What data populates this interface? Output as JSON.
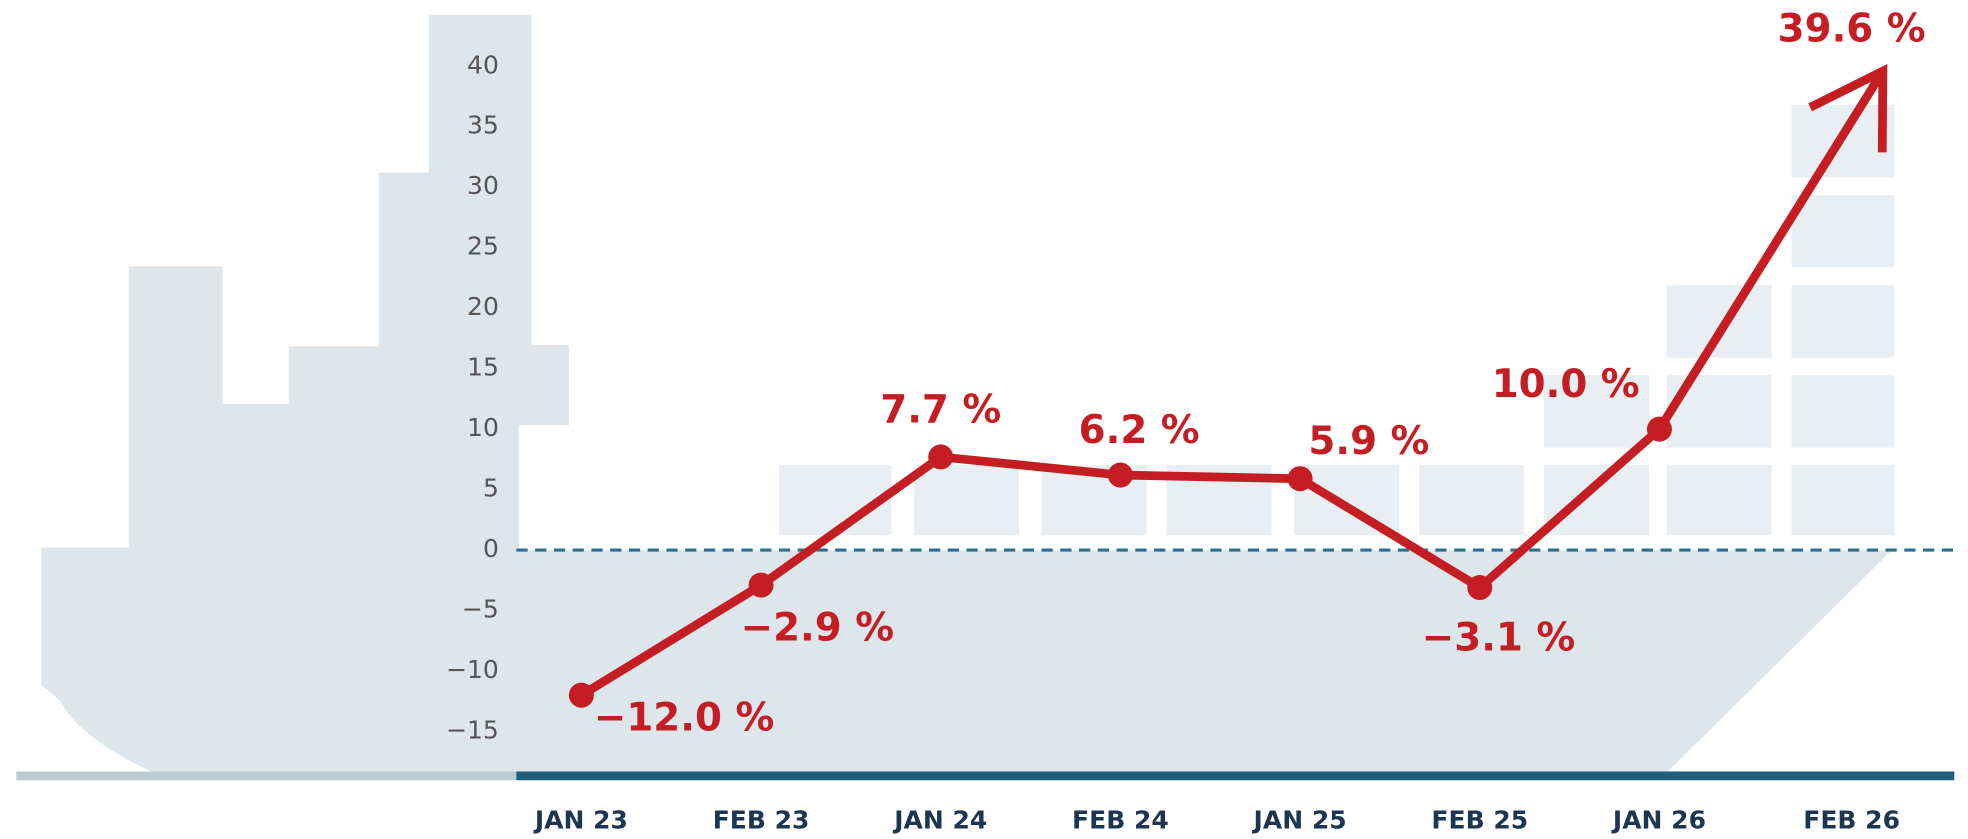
{
  "chart_data": {
    "type": "line",
    "categories": [
      "JAN 23",
      "FEB 23",
      "JAN 24",
      "FEB 24",
      "JAN 25",
      "FEB 25",
      "JAN 26",
      "FEB 26"
    ],
    "values": [
      -12.0,
      -2.9,
      7.7,
      6.2,
      5.9,
      -3.1,
      10.0,
      39.6
    ],
    "value_labels": [
      "−12.0 %",
      "−2.9 %",
      "7.7 %",
      "6.2 %",
      "5.9 %",
      "−3.1 %",
      "10.0 %",
      "39.6 %"
    ],
    "color": "#c41e24",
    "ylim": [
      -15,
      40
    ],
    "yticks": [
      {
        "value": -15,
        "label": "−15"
      },
      {
        "value": -10,
        "label": "−10"
      },
      {
        "value": -5,
        "label": "−5"
      },
      0,
      5,
      10,
      15,
      20,
      25,
      30,
      35,
      40
    ],
    "zero_line": true
  }
}
